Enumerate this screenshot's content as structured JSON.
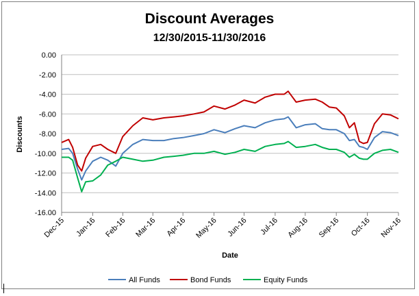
{
  "chart_data": {
    "type": "line",
    "title": "Discount Averages",
    "subtitle": "12/30/2015-11/30/2016",
    "xlabel": "Date",
    "ylabel": "Discounts",
    "ylim": [
      -16,
      0
    ],
    "yticks": [
      "0.00",
      "-2.00",
      "-4.00",
      "-6.00",
      "-8.00",
      "-10.00",
      "-12.00",
      "-14.00",
      "-16.00"
    ],
    "xlim": [
      "2015-12-30",
      "2016-11-30"
    ],
    "xticks": [
      "Dec-15",
      "Jan-16",
      "Feb-16",
      "Mar-16",
      "Apr-16",
      "May-16",
      "Jun-16",
      "Jul-16",
      "Aug-16",
      "Sep-16",
      "Oct-16",
      "Nov-16"
    ],
    "x_tick_dates": [
      "2015-12-30",
      "2016-01-30",
      "2016-02-29",
      "2016-03-30",
      "2016-04-29",
      "2016-05-30",
      "2016-06-29",
      "2016-07-30",
      "2016-08-29",
      "2016-09-29",
      "2016-10-30",
      "2016-11-30"
    ],
    "grid": "horizontal",
    "legend": "bottom",
    "x": [
      "2015-12-30",
      "2016-01-06",
      "2016-01-10",
      "2016-01-15",
      "2016-01-19",
      "2016-01-23",
      "2016-01-30",
      "2016-02-07",
      "2016-02-14",
      "2016-02-22",
      "2016-02-29",
      "2016-03-10",
      "2016-03-20",
      "2016-03-30",
      "2016-04-10",
      "2016-04-20",
      "2016-04-29",
      "2016-05-10",
      "2016-05-20",
      "2016-05-30",
      "2016-06-10",
      "2016-06-20",
      "2016-06-29",
      "2016-07-10",
      "2016-07-20",
      "2016-07-30",
      "2016-08-08",
      "2016-08-12",
      "2016-08-20",
      "2016-08-29",
      "2016-09-08",
      "2016-09-15",
      "2016-09-22",
      "2016-09-29",
      "2016-10-07",
      "2016-10-12",
      "2016-10-17",
      "2016-10-22",
      "2016-10-26",
      "2016-10-30",
      "2016-11-06",
      "2016-11-14",
      "2016-11-22",
      "2016-11-30"
    ],
    "series": [
      {
        "name": "All Funds",
        "color": "#4a7ebb",
        "values": [
          -9.6,
          -9.5,
          -10.0,
          -11.6,
          -12.7,
          -11.8,
          -10.8,
          -10.4,
          -10.7,
          -11.3,
          -10.0,
          -9.1,
          -8.6,
          -8.7,
          -8.7,
          -8.5,
          -8.4,
          -8.2,
          -8.0,
          -7.6,
          -7.9,
          -7.5,
          -7.2,
          -7.4,
          -6.9,
          -6.6,
          -6.5,
          -6.3,
          -7.4,
          -7.1,
          -7.0,
          -7.5,
          -7.6,
          -7.6,
          -8.0,
          -8.7,
          -8.6,
          -9.3,
          -9.4,
          -9.6,
          -8.4,
          -7.8,
          -7.9,
          -8.2
        ]
      },
      {
        "name": "Bond Funds",
        "color": "#c00000",
        "values": [
          -8.9,
          -8.6,
          -9.4,
          -11.2,
          -11.8,
          -10.5,
          -9.3,
          -9.1,
          -9.6,
          -10.0,
          -8.3,
          -7.2,
          -6.4,
          -6.6,
          -6.4,
          -6.3,
          -6.2,
          -6.0,
          -5.8,
          -5.2,
          -5.5,
          -5.1,
          -4.6,
          -4.9,
          -4.3,
          -4.0,
          -4.0,
          -3.7,
          -4.8,
          -4.6,
          -4.5,
          -4.8,
          -5.3,
          -5.4,
          -6.2,
          -7.4,
          -6.9,
          -8.8,
          -9.0,
          -8.9,
          -7.0,
          -6.0,
          -6.1,
          -6.5
        ]
      },
      {
        "name": "Equity Funds",
        "color": "#00b050",
        "values": [
          -10.4,
          -10.4,
          -10.7,
          -12.5,
          -13.9,
          -12.9,
          -12.8,
          -12.2,
          -11.2,
          -10.8,
          -10.4,
          -10.6,
          -10.8,
          -10.7,
          -10.4,
          -10.3,
          -10.2,
          -10.0,
          -10.0,
          -9.8,
          -10.1,
          -9.9,
          -9.6,
          -9.8,
          -9.3,
          -9.1,
          -9.0,
          -8.8,
          -9.4,
          -9.3,
          -9.1,
          -9.4,
          -9.6,
          -9.6,
          -9.9,
          -10.4,
          -10.1,
          -10.5,
          -10.6,
          -10.6,
          -10.0,
          -9.7,
          -9.6,
          -9.9
        ]
      }
    ]
  }
}
